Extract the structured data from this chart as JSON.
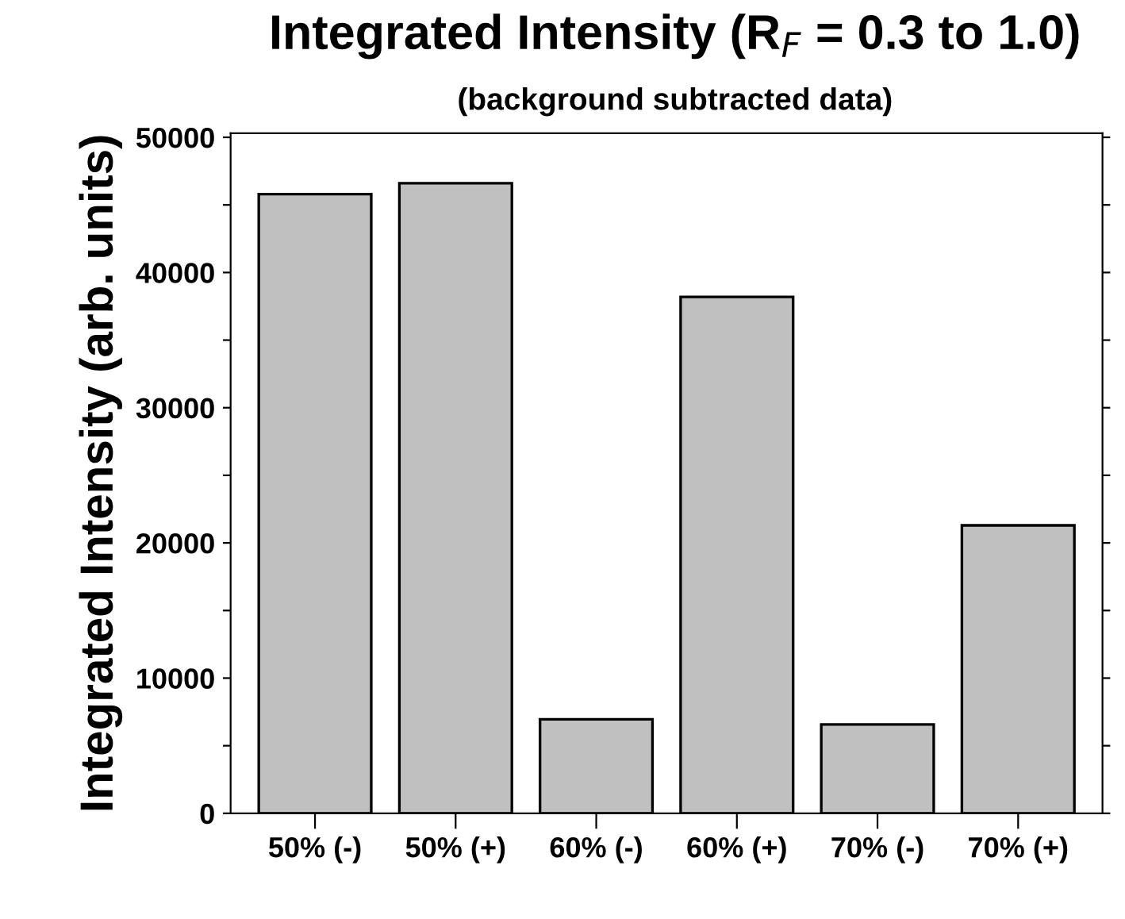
{
  "chart_data": {
    "type": "bar",
    "title": "Integrated Intensity (R$_{F}$ = 0.3 to 1.0)",
    "subtitle": "(background subtracted data)",
    "ylabel": "Integrated Intensity (arb. units)",
    "categories": [
      "50% (-)",
      "50% (+)",
      "60% (-)",
      "60% (+)",
      "70% (-)",
      "70% (+)"
    ],
    "values": [
      45800,
      46600,
      6950,
      38200,
      6570,
      21300
    ],
    "color": "#c0c0c0",
    "ylim": [
      0,
      50300
    ],
    "yticks": [
      0,
      {
        "value": 5000,
        "label": null
      },
      10000,
      {
        "value": 15000,
        "label": null
      },
      20000,
      {
        "value": 25000,
        "label": null
      },
      30000,
      {
        "value": 35000,
        "label": null
      },
      40000,
      {
        "value": 45000,
        "label": null
      },
      50000
    ],
    "grid": false,
    "legend": false
  }
}
